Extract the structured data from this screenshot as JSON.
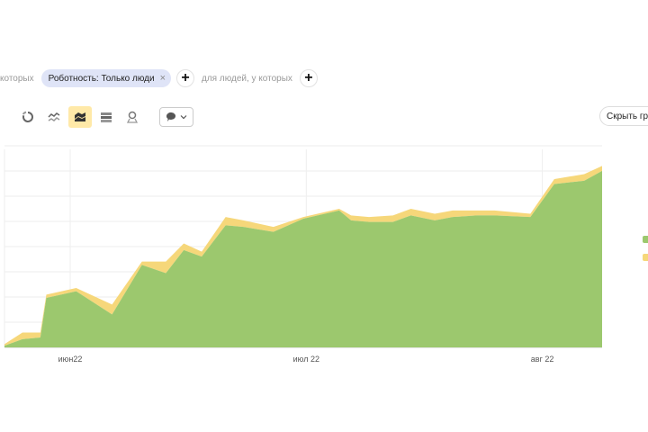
{
  "filters": {
    "prefix_text": "которых",
    "chip_label": "Роботность: Только люди",
    "chip_close": "×",
    "add_symbol": "+",
    "people_text": "для людей, у которых"
  },
  "toolbar": {
    "hide_chart_label": "Скрыть гр",
    "comment_icon": "speech-bubble-icon"
  },
  "colors": {
    "green": "#9cc86e",
    "yellow": "#f6d77a",
    "active_bg": "#ffe9a8",
    "chip_bg": "#dfe4f7"
  },
  "chart_data": {
    "type": "area",
    "stacked": true,
    "x": [
      0,
      3,
      6,
      7,
      12,
      18,
      23,
      27,
      30,
      33,
      37,
      40,
      45,
      50,
      56,
      58,
      61,
      65,
      68,
      72,
      75,
      79,
      82,
      88,
      92,
      97,
      100
    ],
    "series": [
      {
        "color": "#9cc86e",
        "values": [
          1,
          5,
          6,
          30,
          34,
          20,
          50,
          45,
          59,
          55,
          74,
          73,
          70,
          78,
          83,
          77,
          76,
          76,
          80,
          77,
          79,
          80,
          80,
          79,
          99,
          101,
          107
        ]
      },
      {
        "color": "#f6d77a",
        "values": [
          1,
          4,
          3,
          2,
          2,
          6,
          2,
          7,
          4,
          3,
          5,
          4,
          3,
          1,
          1,
          3,
          3,
          4,
          4,
          4,
          4,
          3,
          3,
          2,
          3,
          4,
          3
        ]
      }
    ],
    "x_ticks": [
      {
        "x": 11,
        "label": "июн22"
      },
      {
        "x": 50.5,
        "label": "июл 22"
      },
      {
        "x": 90,
        "label": "авг 22"
      }
    ],
    "ylim": [
      0,
      120
    ],
    "grid": true,
    "legend_position": "right"
  }
}
